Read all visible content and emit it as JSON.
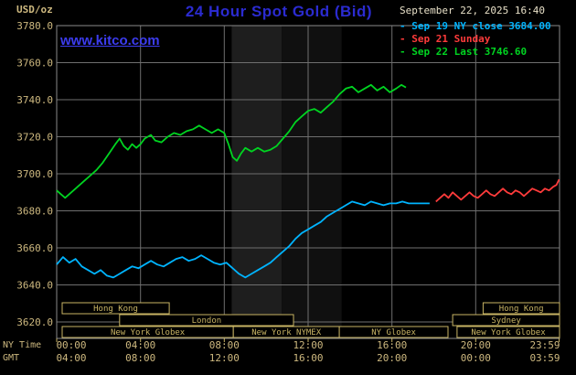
{
  "header": {
    "title": "24 Hour Spot Gold (Bid)",
    "datetime": "September 22, 2025 16:40",
    "unit_label": "USD/oz",
    "watermark": "www.kitco.com"
  },
  "legend": [
    {
      "color": "#00b4ff",
      "text": "- Sep 19 NY close 3684.00"
    },
    {
      "color": "#ff3b3b",
      "text": "- Sep 21 Sunday"
    },
    {
      "color": "#00d421",
      "text": "- Sep 22 Last 3746.60"
    }
  ],
  "axis": {
    "ny_time_label": "NY Time",
    "gmt_label": "GMT",
    "ny_ticks": [
      "00:00",
      "04:00",
      "08:00",
      "12:00",
      "16:00",
      "20:00",
      "23:59"
    ],
    "gmt_ticks": [
      "04:00",
      "08:00",
      "12:00",
      "16:00",
      "20:00",
      "00:00",
      "03:59"
    ]
  },
  "colors": {
    "background": "#000000",
    "title": "#2b2bd0",
    "watermark": "#3c3cf0",
    "axis": "#cdb87f",
    "date": "#e8e0c8",
    "grid": "#6f6f6f",
    "border": "#8a8a8a",
    "session": "#c8b464"
  },
  "chart_data": {
    "type": "line",
    "title": "24 Hour Spot Gold (Bid)",
    "xlabel": "NY Time",
    "ylabel": "USD/oz",
    "ylim": [
      3620,
      3780
    ],
    "ytick_step": 20,
    "xlim_hours": [
      0,
      24
    ],
    "xtick_hours": [
      0,
      4,
      8,
      12,
      16,
      20,
      23.983
    ],
    "grid": true,
    "legend_position": "top-right",
    "bands": [
      {
        "from": 8.35,
        "to": 10.74,
        "color": "#1e1e1e"
      },
      {
        "from": 10.74,
        "to": 13.6,
        "color": "#101010"
      }
    ],
    "series": [
      {
        "name": "Sep 19 NY close",
        "color": "#00b4ff",
        "close_value": 3684.0,
        "points": [
          [
            0,
            3651
          ],
          [
            0.3,
            3655
          ],
          [
            0.6,
            3652
          ],
          [
            0.9,
            3654
          ],
          [
            1.2,
            3650
          ],
          [
            1.5,
            3648
          ],
          [
            1.8,
            3646
          ],
          [
            2.1,
            3648
          ],
          [
            2.4,
            3645
          ],
          [
            2.7,
            3644
          ],
          [
            3.0,
            3646
          ],
          [
            3.3,
            3648
          ],
          [
            3.6,
            3650
          ],
          [
            3.9,
            3649
          ],
          [
            4.2,
            3651
          ],
          [
            4.5,
            3653
          ],
          [
            4.8,
            3651
          ],
          [
            5.1,
            3650
          ],
          [
            5.4,
            3652
          ],
          [
            5.7,
            3654
          ],
          [
            6.0,
            3655
          ],
          [
            6.3,
            3653
          ],
          [
            6.6,
            3654
          ],
          [
            6.9,
            3656
          ],
          [
            7.2,
            3654
          ],
          [
            7.5,
            3652
          ],
          [
            7.8,
            3651
          ],
          [
            8.1,
            3652
          ],
          [
            8.4,
            3649
          ],
          [
            8.7,
            3646
          ],
          [
            9.0,
            3644
          ],
          [
            9.3,
            3646
          ],
          [
            9.6,
            3648
          ],
          [
            9.9,
            3650
          ],
          [
            10.2,
            3652
          ],
          [
            10.5,
            3655
          ],
          [
            10.8,
            3658
          ],
          [
            11.1,
            3661
          ],
          [
            11.4,
            3665
          ],
          [
            11.7,
            3668
          ],
          [
            12.0,
            3670
          ],
          [
            12.3,
            3672
          ],
          [
            12.6,
            3674
          ],
          [
            12.9,
            3677
          ],
          [
            13.2,
            3679
          ],
          [
            13.5,
            3681
          ],
          [
            13.8,
            3683
          ],
          [
            14.1,
            3685
          ],
          [
            14.4,
            3684
          ],
          [
            14.7,
            3683
          ],
          [
            15.0,
            3685
          ],
          [
            15.3,
            3684
          ],
          [
            15.6,
            3683
          ],
          [
            15.9,
            3684
          ],
          [
            16.2,
            3684
          ],
          [
            16.5,
            3685
          ],
          [
            16.8,
            3684
          ],
          [
            17.2,
            3684
          ],
          [
            17.8,
            3684
          ]
        ]
      },
      {
        "name": "Sep 21 Sunday",
        "color": "#ff3b3b",
        "points": [
          [
            18.1,
            3685
          ],
          [
            18.3,
            3687
          ],
          [
            18.5,
            3689
          ],
          [
            18.7,
            3687
          ],
          [
            18.9,
            3690
          ],
          [
            19.1,
            3688
          ],
          [
            19.3,
            3686
          ],
          [
            19.5,
            3688
          ],
          [
            19.7,
            3690
          ],
          [
            19.9,
            3688
          ],
          [
            20.1,
            3687
          ],
          [
            20.3,
            3689
          ],
          [
            20.5,
            3691
          ],
          [
            20.7,
            3689
          ],
          [
            20.9,
            3688
          ],
          [
            21.1,
            3690
          ],
          [
            21.3,
            3692
          ],
          [
            21.5,
            3690
          ],
          [
            21.7,
            3689
          ],
          [
            21.9,
            3691
          ],
          [
            22.1,
            3690
          ],
          [
            22.3,
            3688
          ],
          [
            22.5,
            3690
          ],
          [
            22.7,
            3692
          ],
          [
            22.9,
            3691
          ],
          [
            23.1,
            3690
          ],
          [
            23.3,
            3692
          ],
          [
            23.5,
            3691
          ],
          [
            23.7,
            3693
          ],
          [
            23.85,
            3694
          ],
          [
            23.98,
            3697
          ]
        ]
      },
      {
        "name": "Sep 22",
        "color": "#00d421",
        "last_value": 3746.6,
        "points": [
          [
            0,
            3691
          ],
          [
            0.2,
            3689
          ],
          [
            0.4,
            3687
          ],
          [
            0.7,
            3690
          ],
          [
            1.0,
            3693
          ],
          [
            1.3,
            3696
          ],
          [
            1.6,
            3699
          ],
          [
            1.9,
            3702
          ],
          [
            2.2,
            3706
          ],
          [
            2.5,
            3711
          ],
          [
            2.8,
            3716
          ],
          [
            3.0,
            3719
          ],
          [
            3.2,
            3715
          ],
          [
            3.4,
            3713
          ],
          [
            3.6,
            3716
          ],
          [
            3.8,
            3714
          ],
          [
            4.0,
            3716
          ],
          [
            4.2,
            3719
          ],
          [
            4.5,
            3721
          ],
          [
            4.7,
            3718
          ],
          [
            5.0,
            3717
          ],
          [
            5.3,
            3720
          ],
          [
            5.6,
            3722
          ],
          [
            5.9,
            3721
          ],
          [
            6.2,
            3723
          ],
          [
            6.5,
            3724
          ],
          [
            6.8,
            3726
          ],
          [
            7.1,
            3724
          ],
          [
            7.4,
            3722
          ],
          [
            7.7,
            3724
          ],
          [
            8.0,
            3722
          ],
          [
            8.2,
            3716
          ],
          [
            8.4,
            3709
          ],
          [
            8.6,
            3707
          ],
          [
            8.8,
            3711
          ],
          [
            9.0,
            3714
          ],
          [
            9.3,
            3712
          ],
          [
            9.6,
            3714
          ],
          [
            9.9,
            3712
          ],
          [
            10.2,
            3713
          ],
          [
            10.5,
            3715
          ],
          [
            10.8,
            3719
          ],
          [
            11.1,
            3723
          ],
          [
            11.4,
            3728
          ],
          [
            11.7,
            3731
          ],
          [
            12.0,
            3734
          ],
          [
            12.3,
            3735
          ],
          [
            12.6,
            3733
          ],
          [
            12.9,
            3736
          ],
          [
            13.2,
            3739
          ],
          [
            13.5,
            3743
          ],
          [
            13.8,
            3746
          ],
          [
            14.1,
            3747
          ],
          [
            14.4,
            3744
          ],
          [
            14.7,
            3746
          ],
          [
            15.0,
            3748
          ],
          [
            15.3,
            3745
          ],
          [
            15.6,
            3747
          ],
          [
            15.9,
            3744
          ],
          [
            16.2,
            3746
          ],
          [
            16.45,
            3748
          ],
          [
            16.67,
            3746.6
          ]
        ]
      }
    ],
    "sessions": [
      {
        "row": 0,
        "label": "Hong Kong",
        "from": 0.26,
        "to": 5.37
      },
      {
        "row": 0,
        "label": "Hong Kong",
        "from": 20.35,
        "to": 24
      },
      {
        "row": 1,
        "label": "London",
        "from": 3.0,
        "to": 11.3
      },
      {
        "row": 1,
        "label": "Sydney",
        "from": 18.9,
        "to": 24
      },
      {
        "row": 2,
        "label": "New York Globex",
        "from": 0.26,
        "to": 8.43
      },
      {
        "row": 2,
        "label": "New York NYMEX",
        "from": 8.43,
        "to": 13.49
      },
      {
        "row": 2,
        "label": "NY Globex",
        "from": 13.49,
        "to": 18.68
      },
      {
        "row": 2,
        "label": "New York Globex",
        "from": 19.11,
        "to": 24
      }
    ]
  }
}
